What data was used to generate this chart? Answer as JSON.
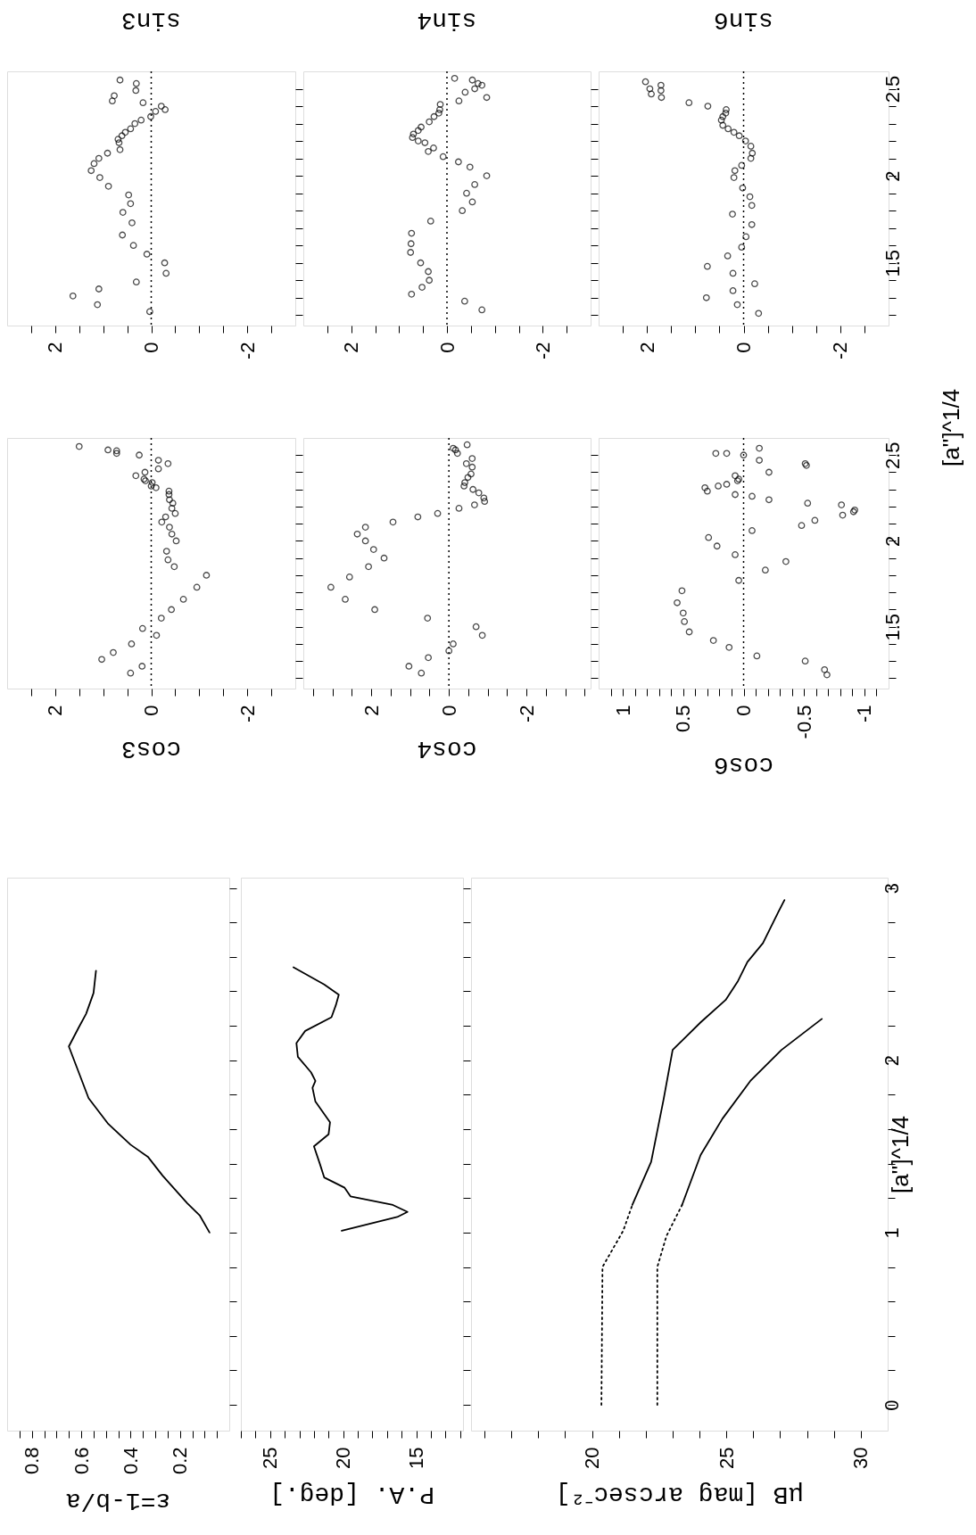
{
  "chart_data": [
    {
      "type": "scatter",
      "xlabel": "sin3",
      "marker": "circle",
      "color": "#000000",
      "tick_labels": "x",
      "ylim": [
        1.14,
        2.6
      ],
      "xlim": [
        3,
        -3
      ],
      "yticks": [
        {
          "value": 1.2,
          "label": null
        },
        {
          "value": 1.3,
          "label": null
        },
        {
          "value": 1.4,
          "label": null
        },
        1.5,
        {
          "value": 1.6,
          "label": null
        },
        {
          "value": 1.7,
          "label": null
        },
        {
          "value": 1.8,
          "label": null
        },
        {
          "value": 1.9,
          "label": null
        },
        2,
        {
          "value": 2.1,
          "label": null
        },
        {
          "value": 2.2,
          "label": null
        },
        {
          "value": 2.3,
          "label": null
        },
        {
          "value": 2.4,
          "label": null
        },
        2.5
      ],
      "xticks": [
        {
          "value": 2.5,
          "label": null
        },
        2,
        {
          "value": 1.5,
          "label": null
        },
        {
          "value": 1,
          "label": null
        },
        {
          "value": 0.5,
          "label": null
        },
        0,
        {
          "value": -0.5,
          "label": null
        },
        {
          "value": -1,
          "label": null
        },
        {
          "value": -1.5,
          "label": null
        },
        -2,
        {
          "value": -2.5,
          "label": null
        }
      ],
      "ref_lines": [
        {
          "axis": "x",
          "value": 0,
          "line_style": "dotted"
        }
      ],
      "values": [
        2.55,
        2.53,
        2.49,
        2.46,
        2.43,
        2.42,
        2.4,
        2.38,
        2.37,
        2.34,
        2.32,
        2.3,
        2.27,
        2.25,
        2.23,
        2.21,
        2.19,
        2.15,
        2.13,
        2.1,
        2.07,
        2.03,
        1.99,
        1.94,
        1.89,
        1.84,
        1.79,
        1.73,
        1.66,
        1.6,
        1.55,
        1.5,
        1.44,
        1.39,
        1.35,
        1.31,
        1.26,
        1.22
      ],
      "x": [
        0.65,
        0.31,
        0.32,
        0.77,
        0.81,
        0.17,
        -0.21,
        -0.29,
        -0.09,
        0.01,
        0.21,
        0.34,
        0.43,
        0.54,
        0.61,
        0.69,
        0.67,
        0.65,
        0.91,
        1.09,
        1.19,
        1.25,
        1.07,
        0.89,
        0.47,
        0.43,
        0.59,
        0.4,
        0.6,
        0.37,
        0.09,
        -0.28,
        -0.31,
        0.31,
        1.09,
        1.63,
        1.12,
        0.03
      ]
    },
    {
      "type": "scatter",
      "xlabel": "sin4",
      "marker": "circle",
      "color": "#000000",
      "tick_labels": "x",
      "ylim": [
        1.14,
        2.6
      ],
      "xlim": [
        3,
        -3
      ],
      "yticks": [
        {
          "value": 1.2,
          "label": null
        },
        {
          "value": 1.3,
          "label": null
        },
        {
          "value": 1.4,
          "label": null
        },
        1.5,
        {
          "value": 1.6,
          "label": null
        },
        {
          "value": 1.7,
          "label": null
        },
        {
          "value": 1.8,
          "label": null
        },
        {
          "value": 1.9,
          "label": null
        },
        2,
        {
          "value": 2.1,
          "label": null
        },
        {
          "value": 2.2,
          "label": null
        },
        {
          "value": 2.3,
          "label": null
        },
        {
          "value": 2.4,
          "label": null
        },
        2.5
      ],
      "xticks": [
        {
          "value": 2.5,
          "label": null
        },
        2,
        {
          "value": 1.5,
          "label": null
        },
        {
          "value": 1,
          "label": null
        },
        {
          "value": 0.5,
          "label": null
        },
        0,
        {
          "value": -0.5,
          "label": null
        },
        {
          "value": -1,
          "label": null
        },
        {
          "value": -1.5,
          "label": null
        },
        -2,
        {
          "value": -2.5,
          "label": null
        }
      ],
      "ref_lines": [
        {
          "axis": "x",
          "value": 0,
          "line_style": "dotted"
        }
      ],
      "values": [
        2.56,
        2.55,
        2.53,
        2.52,
        2.5,
        2.48,
        2.45,
        2.43,
        2.41,
        2.38,
        2.36,
        2.34,
        2.31,
        2.28,
        2.26,
        2.24,
        2.22,
        2.2,
        2.19,
        2.16,
        2.14,
        2.11,
        2.08,
        2.05,
        2.0,
        1.95,
        1.9,
        1.85,
        1.8,
        1.74,
        1.67,
        1.61,
        1.56,
        1.5,
        1.45,
        1.4,
        1.36,
        1.32,
        1.28,
        1.23
      ],
      "x": [
        -0.16,
        -0.53,
        -0.65,
        -0.73,
        -0.58,
        -0.38,
        -0.83,
        -0.25,
        0.14,
        0.15,
        0.17,
        0.27,
        0.37,
        0.54,
        0.6,
        0.7,
        0.72,
        0.6,
        0.46,
        0.28,
        0.39,
        0.08,
        -0.24,
        -0.48,
        -0.83,
        -0.58,
        -0.41,
        -0.53,
        -0.32,
        0.34,
        0.74,
        0.75,
        0.76,
        0.55,
        0.39,
        0.37,
        0.52,
        0.74,
        -0.37,
        -0.73
      ]
    },
    {
      "type": "scatter",
      "xlabel": "sin6",
      "marker": "circle",
      "color": "#000000",
      "ylim": [
        1.14,
        2.6
      ],
      "xlim": [
        3,
        -3
      ],
      "yticks": [
        {
          "value": 1.2,
          "label": null
        },
        {
          "value": 1.3,
          "label": null
        },
        {
          "value": 1.4,
          "label": null
        },
        1.5,
        {
          "value": 1.6,
          "label": null
        },
        {
          "value": 1.7,
          "label": null
        },
        {
          "value": 1.8,
          "label": null
        },
        {
          "value": 1.9,
          "label": null
        },
        2,
        {
          "value": 2.1,
          "label": null
        },
        {
          "value": 2.2,
          "label": null
        },
        {
          "value": 2.3,
          "label": null
        },
        {
          "value": 2.4,
          "label": null
        },
        2.5
      ],
      "xticks": [
        {
          "value": 2.5,
          "label": null
        },
        2,
        {
          "value": 1.5,
          "label": null
        },
        {
          "value": 1,
          "label": null
        },
        {
          "value": 0.5,
          "label": null
        },
        0,
        {
          "value": -0.5,
          "label": null
        },
        {
          "value": -1,
          "label": null
        },
        {
          "value": -1.5,
          "label": null
        },
        -2,
        {
          "value": -2.5,
          "label": null
        }
      ],
      "ref_lines": [
        {
          "axis": "x",
          "value": 0,
          "line_style": "dotted"
        }
      ],
      "values": [
        2.54,
        2.5,
        2.47,
        2.52,
        2.49,
        2.45,
        2.42,
        2.4,
        2.38,
        2.36,
        2.34,
        2.32,
        2.29,
        2.27,
        2.25,
        2.23,
        2.2,
        2.17,
        2.13,
        2.1,
        2.06,
        2.03,
        1.99,
        1.93,
        1.88,
        1.83,
        1.78,
        1.72,
        1.65,
        1.59,
        1.54,
        1.48,
        1.44,
        1.38,
        1.34,
        1.3,
        1.26,
        1.21
      ],
      "x": [
        2.03,
        1.94,
        1.91,
        1.71,
        1.71,
        1.7,
        1.13,
        0.74,
        0.36,
        0.37,
        0.43,
        0.46,
        0.43,
        0.32,
        0.2,
        0.09,
        -0.04,
        -0.15,
        -0.18,
        -0.15,
        0.04,
        0.18,
        0.2,
        0.02,
        -0.13,
        -0.17,
        0.23,
        -0.17,
        -0.05,
        0.04,
        0.33,
        0.75,
        0.22,
        -0.23,
        0.22,
        0.77,
        0.13,
        -0.31
      ]
    },
    {
      "type": "scatter",
      "xlabel": "cos3",
      "marker": "circle",
      "color": "#000000",
      "tick_labels": "x",
      "ylim": [
        1.14,
        2.6
      ],
      "xlim": [
        3,
        -3
      ],
      "yticks": [
        {
          "value": 1.2,
          "label": null
        },
        {
          "value": 1.3,
          "label": null
        },
        {
          "value": 1.4,
          "label": null
        },
        1.5,
        {
          "value": 1.6,
          "label": null
        },
        {
          "value": 1.7,
          "label": null
        },
        {
          "value": 1.8,
          "label": null
        },
        {
          "value": 1.9,
          "label": null
        },
        2,
        {
          "value": 2.1,
          "label": null
        },
        {
          "value": 2.2,
          "label": null
        },
        {
          "value": 2.3,
          "label": null
        },
        {
          "value": 2.4,
          "label": null
        },
        2.5
      ],
      "xticks": [
        {
          "value": 2.5,
          "label": null
        },
        2,
        {
          "value": 1.5,
          "label": null
        },
        {
          "value": 1,
          "label": null
        },
        {
          "value": 0.5,
          "label": null
        },
        0,
        {
          "value": -0.5,
          "label": null
        },
        {
          "value": -1,
          "label": null
        },
        {
          "value": -1.5,
          "label": null
        },
        -2,
        {
          "value": -2.5,
          "label": null
        }
      ],
      "ref_lines": [
        {
          "axis": "x",
          "value": 0,
          "line_style": "dotted"
        }
      ],
      "values": [
        2.55,
        2.53,
        2.525,
        2.51,
        2.5,
        2.47,
        2.42,
        2.45,
        2.4,
        2.38,
        2.36,
        2.35,
        2.34,
        2.32,
        2.31,
        2.29,
        2.27,
        2.24,
        2.22,
        2.19,
        2.16,
        2.14,
        2.11,
        2.08,
        2.04,
        2.0,
        1.94,
        1.89,
        1.85,
        1.8,
        1.73,
        1.66,
        1.6,
        1.55,
        1.49,
        1.45,
        1.4,
        1.35,
        1.31,
        1.27,
        1.23
      ],
      "x": [
        1.5,
        0.9,
        0.72,
        0.72,
        0.25,
        -0.15,
        -0.15,
        -0.35,
        0.13,
        0.32,
        0.15,
        0.12,
        -0.02,
        0,
        -0.1,
        -0.37,
        -0.37,
        -0.38,
        -0.45,
        -0.43,
        -0.5,
        -0.3,
        -0.22,
        -0.38,
        -0.43,
        -0.52,
        -0.32,
        -0.35,
        -0.48,
        -1.15,
        -0.95,
        -0.67,
        -0.42,
        -0.21,
        0.18,
        -0.11,
        0.41,
        0.79,
        1.03,
        0.19,
        0.43
      ]
    },
    {
      "type": "scatter",
      "xlabel": "cos4",
      "marker": "circle",
      "color": "#000000",
      "tick_labels": "x",
      "ylim": [
        1.14,
        2.6
      ],
      "xlim": [
        3.75,
        -3.65
      ],
      "yticks": [
        {
          "value": 1.2,
          "label": null
        },
        {
          "value": 1.3,
          "label": null
        },
        {
          "value": 1.4,
          "label": null
        },
        1.5,
        {
          "value": 1.6,
          "label": null
        },
        {
          "value": 1.7,
          "label": null
        },
        {
          "value": 1.8,
          "label": null
        },
        {
          "value": 1.9,
          "label": null
        },
        2,
        {
          "value": 2.1,
          "label": null
        },
        {
          "value": 2.2,
          "label": null
        },
        {
          "value": 2.3,
          "label": null
        },
        {
          "value": 2.4,
          "label": null
        },
        2.5
      ],
      "xticks": [
        {
          "value": 3.5,
          "label": null
        },
        {
          "value": 3,
          "label": null
        },
        {
          "value": 2.5,
          "label": null
        },
        2,
        {
          "value": 1.5,
          "label": null
        },
        {
          "value": 1,
          "label": null
        },
        {
          "value": 0.5,
          "label": null
        },
        0,
        {
          "value": -0.5,
          "label": null
        },
        {
          "value": -1,
          "label": null
        },
        {
          "value": -1.5,
          "label": null
        },
        -2,
        {
          "value": -2.5,
          "label": null
        },
        {
          "value": -3,
          "label": null
        },
        {
          "value": -3.5,
          "label": null
        }
      ],
      "ref_lines": [
        {
          "axis": "x",
          "value": 0,
          "line_style": "dotted"
        }
      ],
      "values": [
        2.56,
        2.54,
        2.53,
        2.51,
        2.48,
        2.45,
        2.43,
        2.39,
        2.37,
        2.34,
        2.32,
        2.3,
        2.28,
        2.25,
        2.23,
        2.21,
        2.19,
        2.16,
        2.14,
        2.11,
        2.08,
        2.04,
        2.0,
        1.95,
        1.9,
        1.85,
        1.79,
        1.73,
        1.66,
        1.6,
        1.55,
        1.5,
        1.45,
        1.4,
        1.36,
        1.32,
        1.27,
        1.23
      ],
      "x": [
        -0.47,
        -0.11,
        -0.17,
        -0.22,
        -0.6,
        -0.45,
        -0.6,
        -0.57,
        -0.49,
        -0.41,
        -0.39,
        -0.62,
        -0.77,
        -0.9,
        -0.92,
        -0.66,
        -0.26,
        0.29,
        0.8,
        1.44,
        2.15,
        2.36,
        2.15,
        1.94,
        1.67,
        2.07,
        2.56,
        3.04,
        2.67,
        1.91,
        0.55,
        -0.7,
        -0.86,
        -0.11,
        0,
        0.53,
        1.03,
        0.71
      ]
    },
    {
      "type": "scatter",
      "ylabel": "[a'']^1/4",
      "xlabel": "cos6",
      "marker": "circle",
      "color": "#000000",
      "ylim": [
        1.14,
        2.6
      ],
      "xlim": [
        1.2,
        -1.2
      ],
      "yticks": [
        {
          "value": 1.2,
          "label": null
        },
        {
          "value": 1.3,
          "label": null
        },
        {
          "value": 1.4,
          "label": null
        },
        1.5,
        {
          "value": 1.6,
          "label": null
        },
        {
          "value": 1.7,
          "label": null
        },
        {
          "value": 1.8,
          "label": null
        },
        {
          "value": 1.9,
          "label": null
        },
        2,
        {
          "value": 2.1,
          "label": null
        },
        {
          "value": 2.2,
          "label": null
        },
        {
          "value": 2.3,
          "label": null
        },
        {
          "value": 2.4,
          "label": null
        },
        2.5
      ],
      "xticks": [
        {
          "value": 1.1,
          "label": null
        },
        1,
        {
          "value": 0.9,
          "label": null
        },
        {
          "value": 0.8,
          "label": null
        },
        {
          "value": 0.7,
          "label": null
        },
        {
          "value": 0.6,
          "label": null
        },
        0.5,
        {
          "value": 0.4,
          "label": null
        },
        {
          "value": 0.3,
          "label": null
        },
        {
          "value": 0.2,
          "label": null
        },
        {
          "value": 0.1,
          "label": null
        },
        0,
        {
          "value": -0.1,
          "label": null
        },
        {
          "value": -0.2,
          "label": null
        },
        {
          "value": -0.3,
          "label": null
        },
        {
          "value": -0.4,
          "label": null
        },
        -0.5,
        {
          "value": -0.6,
          "label": null
        },
        {
          "value": -0.7,
          "label": null
        },
        {
          "value": -0.8,
          "label": null
        },
        {
          "value": -0.9,
          "label": null
        },
        -1,
        {
          "value": -1.1,
          "label": null
        }
      ],
      "ref_lines": [
        {
          "axis": "x",
          "value": 0,
          "line_style": "dotted"
        }
      ],
      "values": [
        2.51,
        2.51,
        2.5,
        2.54,
        2.47,
        2.45,
        2.44,
        2.4,
        2.38,
        2.36,
        2.35,
        2.31,
        2.29,
        2.32,
        2.33,
        2.27,
        2.26,
        2.24,
        2.22,
        2.21,
        2.15,
        2.18,
        2.17,
        2.12,
        2.09,
        2.06,
        2.02,
        1.97,
        1.92,
        1.88,
        1.83,
        1.77,
        1.71,
        1.64,
        1.58,
        1.53,
        1.47,
        1.42,
        1.38,
        1.33,
        1.3,
        1.25,
        1.22
      ],
      "x": [
        0.23,
        0.14,
        0,
        -0.13,
        -0.13,
        -0.51,
        -0.52,
        -0.21,
        0.07,
        0.04,
        0.05,
        0.32,
        0.3,
        0.21,
        0.14,
        0.07,
        -0.07,
        -0.21,
        -0.53,
        -0.81,
        -0.82,
        -0.92,
        -0.91,
        -0.59,
        -0.48,
        -0.07,
        0.29,
        0.22,
        0.07,
        -0.35,
        -0.18,
        0.04,
        0.51,
        0.55,
        0.5,
        0.49,
        0.45,
        0.25,
        0.12,
        -0.11,
        -0.51,
        -0.67,
        -0.69
      ]
    },
    {
      "type": "line",
      "xlabel": "ε=1-b/a",
      "color": "#000000",
      "tick_labels": "x",
      "ylim": [
        -0.15,
        3.06
      ],
      "xlim": [
        0.9,
        0
      ],
      "yticks": [
        0,
        {
          "value": 0.2,
          "label": null
        },
        {
          "value": 0.4,
          "label": null
        },
        {
          "value": 0.6,
          "label": null
        },
        {
          "value": 0.8,
          "label": null
        },
        1,
        {
          "value": 1.2,
          "label": null
        },
        {
          "value": 1.4,
          "label": null
        },
        {
          "value": 1.6,
          "label": null
        },
        {
          "value": 1.8,
          "label": null
        },
        2,
        {
          "value": 2.2,
          "label": null
        },
        {
          "value": 2.4,
          "label": null
        },
        {
          "value": 2.6,
          "label": null
        },
        {
          "value": 2.8,
          "label": null
        },
        3
      ],
      "xticks": [
        {
          "value": 0.85,
          "label": null
        },
        0.8,
        {
          "value": 0.75,
          "label": null
        },
        {
          "value": 0.7,
          "label": null
        },
        {
          "value": 0.65,
          "label": null
        },
        0.6,
        {
          "value": 0.55,
          "label": null
        },
        {
          "value": 0.5,
          "label": null
        },
        {
          "value": 0.45,
          "label": null
        },
        0.4,
        {
          "value": 0.35,
          "label": null
        },
        {
          "value": 0.3,
          "label": null
        },
        {
          "value": 0.25,
          "label": null
        },
        0.2,
        {
          "value": 0.15,
          "label": null
        },
        {
          "value": 0.1,
          "label": null
        },
        {
          "value": 0.05,
          "label": null
        }
      ],
      "values": [
        1.0,
        1.1,
        1.17,
        1.33,
        1.44,
        1.51,
        1.63,
        1.78,
        1.93,
        2.08,
        2.19,
        2.27,
        2.39,
        2.52
      ],
      "x": [
        0.08,
        0.12,
        0.17,
        0.27,
        0.33,
        0.4,
        0.49,
        0.57,
        0.61,
        0.65,
        0.61,
        0.58,
        0.55,
        0.54
      ]
    },
    {
      "type": "line",
      "xlabel": "P.A. [deg.]",
      "color": "#000000",
      "tick_labels": "x",
      "ylim": [
        -0.15,
        3.06
      ],
      "xlim": [
        27,
        11.8
      ],
      "yticks": [
        0,
        {
          "value": 0.2,
          "label": null
        },
        {
          "value": 0.4,
          "label": null
        },
        {
          "value": 0.6,
          "label": null
        },
        {
          "value": 0.8,
          "label": null
        },
        1,
        {
          "value": 1.2,
          "label": null
        },
        {
          "value": 1.4,
          "label": null
        },
        {
          "value": 1.6,
          "label": null
        },
        {
          "value": 1.8,
          "label": null
        },
        2,
        {
          "value": 2.2,
          "label": null
        },
        {
          "value": 2.4,
          "label": null
        },
        {
          "value": 2.6,
          "label": null
        },
        {
          "value": 2.8,
          "label": null
        },
        3
      ],
      "xticks": [
        {
          "value": 27,
          "label": null
        },
        {
          "value": 26,
          "label": null
        },
        25,
        {
          "value": 24,
          "label": null
        },
        {
          "value": 23,
          "label": null
        },
        {
          "value": 22,
          "label": null
        },
        {
          "value": 21,
          "label": null
        },
        20,
        {
          "value": 19,
          "label": null
        },
        {
          "value": 18,
          "label": null
        },
        {
          "value": 17,
          "label": null
        },
        {
          "value": 16,
          "label": null
        },
        15,
        {
          "value": 14,
          "label": null
        },
        {
          "value": 13,
          "label": null
        },
        {
          "value": 12,
          "label": null
        }
      ],
      "values": [
        1.01,
        1.09,
        1.12,
        1.16,
        1.21,
        1.26,
        1.32,
        1.4,
        1.5,
        1.57,
        1.64,
        1.76,
        1.84,
        1.88,
        1.93,
        2.02,
        2.1,
        2.17,
        2.25,
        2.32,
        2.38,
        2.44,
        2.54
      ],
      "x": [
        20.1,
        16.3,
        15.6,
        16.6,
        19.5,
        19.9,
        21.3,
        21.6,
        22.0,
        21.0,
        20.9,
        21.9,
        22.1,
        21.9,
        22.2,
        23.1,
        23.2,
        22.6,
        20.8,
        20.5,
        20.3,
        21.3,
        23.4
      ]
    },
    {
      "type": "line",
      "ylabel": "[a'']^1/4",
      "xlabel": "μB [mag arcsec⁻²]",
      "ylim": [
        -0.15,
        3.06
      ],
      "xlim": [
        15.5,
        31
      ],
      "yticks": [
        0,
        {
          "value": 0.2,
          "label": null
        },
        {
          "value": 0.4,
          "label": null
        },
        {
          "value": 0.6,
          "label": null
        },
        {
          "value": 0.8,
          "label": null
        },
        1,
        {
          "value": 1.2,
          "label": null
        },
        {
          "value": 1.4,
          "label": null
        },
        {
          "value": 1.6,
          "label": null
        },
        {
          "value": 1.8,
          "label": null
        },
        2,
        {
          "value": 2.2,
          "label": null
        },
        {
          "value": 2.4,
          "label": null
        },
        {
          "value": 2.6,
          "label": null
        },
        {
          "value": 2.8,
          "label": null
        },
        3
      ],
      "xticks": [
        {
          "value": 16,
          "label": null
        },
        {
          "value": 17,
          "label": null
        },
        {
          "value": 18,
          "label": null
        },
        {
          "value": 19,
          "label": null
        },
        20,
        {
          "value": 21,
          "label": null
        },
        {
          "value": 22,
          "label": null
        },
        {
          "value": 23,
          "label": null
        },
        {
          "value": 24,
          "label": null
        },
        25,
        {
          "value": 26,
          "label": null
        },
        {
          "value": 27,
          "label": null
        },
        {
          "value": 28,
          "label": null
        },
        {
          "value": 29,
          "label": null
        },
        30
      ],
      "series": [
        {
          "color": "#000000",
          "line_style": "dotted",
          "values": [
            0,
            0.8,
            1.01,
            1.16
          ],
          "x": [
            20.35,
            20.39,
            21.16,
            21.5
          ]
        },
        {
          "color": "#000000",
          "line_style": "solid",
          "values": [
            1.16,
            1.41,
            1.77,
            2.06,
            2.22,
            2.35,
            2.46,
            2.57,
            2.68,
            2.86,
            2.93
          ],
          "x": [
            21.5,
            22.2,
            22.66,
            23.0,
            24.04,
            24.97,
            25.43,
            25.78,
            26.36,
            26.93,
            27.16
          ]
        },
        {
          "color": "#000000",
          "line_style": "dotted",
          "values": [
            0,
            0.8,
            0.98,
            1.16
          ],
          "x": [
            22.43,
            22.43,
            22.77,
            23.35
          ]
        },
        {
          "color": "#000000",
          "line_style": "solid",
          "values": [
            1.16,
            1.45,
            1.66,
            1.88,
            2.06,
            2.24
          ],
          "x": [
            23.35,
            24.04,
            24.85,
            25.89,
            27.05,
            28.55
          ]
        }
      ]
    }
  ]
}
